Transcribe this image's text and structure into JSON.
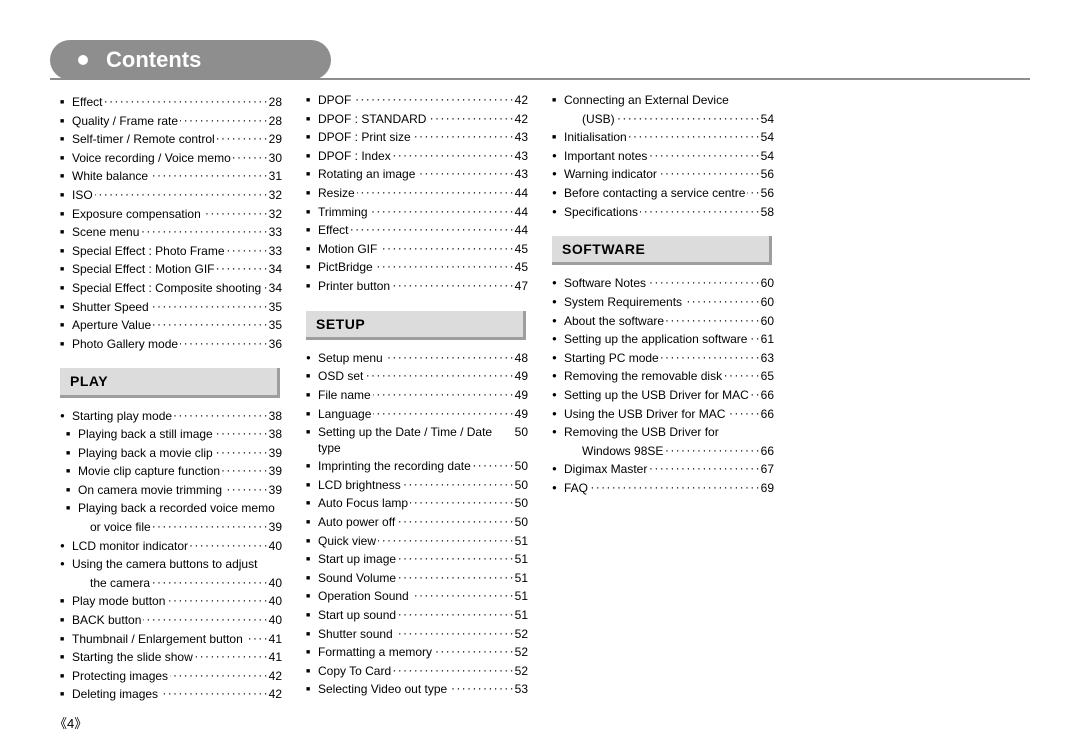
{
  "title": "Contents",
  "page_number_label": "《4》",
  "colors": {
    "bg": "#ffffff",
    "text": "#000000",
    "title_bar": "#8e8e8e",
    "title_text": "#ffffff",
    "section_bg": "#dcdcdc",
    "section_shadow": "#9e9e9e",
    "underline": "#8e8e8e"
  },
  "entries": [
    {
      "type": "item",
      "bullet": "square",
      "label": "Effect",
      "page": "28"
    },
    {
      "type": "item",
      "bullet": "square",
      "label": "Quality / Frame rate",
      "page": "28"
    },
    {
      "type": "item",
      "bullet": "square",
      "label": "Self-timer / Remote control",
      "page": "29"
    },
    {
      "type": "item",
      "bullet": "square",
      "label": "Voice recording / Voice memo",
      "page": "30"
    },
    {
      "type": "item",
      "bullet": "square",
      "label": "White balance",
      "page": "31"
    },
    {
      "type": "item",
      "bullet": "square",
      "label": "ISO",
      "page": "32"
    },
    {
      "type": "item",
      "bullet": "square",
      "label": "Exposure compensation",
      "page": "32"
    },
    {
      "type": "item",
      "bullet": "square",
      "label": "Scene menu",
      "page": "33"
    },
    {
      "type": "item",
      "bullet": "square",
      "label": "Special Effect : Photo Frame",
      "page": "33"
    },
    {
      "type": "item",
      "bullet": "square",
      "label": "Special Effect : Motion GIF",
      "page": "34"
    },
    {
      "type": "item",
      "bullet": "square",
      "label": "Special Effect : Composite shooting",
      "page": "34"
    },
    {
      "type": "item",
      "bullet": "square",
      "label": "Shutter Speed",
      "page": "35"
    },
    {
      "type": "item",
      "bullet": "square",
      "label": "Aperture Value",
      "page": "35"
    },
    {
      "type": "item",
      "bullet": "square",
      "label": "Photo Gallery mode",
      "page": "36"
    },
    {
      "type": "section",
      "label": "PLAY"
    },
    {
      "type": "item",
      "bullet": "disc",
      "label": "Starting play mode",
      "page": "38"
    },
    {
      "type": "item",
      "bullet": "square",
      "label": "Playing back a still image",
      "page": "38",
      "sub": true
    },
    {
      "type": "item",
      "bullet": "square",
      "label": "Playing back a movie clip",
      "page": "39",
      "sub": true
    },
    {
      "type": "item",
      "bullet": "square",
      "label": "Movie clip capture function",
      "page": "39",
      "sub": true
    },
    {
      "type": "item",
      "bullet": "square",
      "label": "On camera movie trimming",
      "page": "39",
      "sub": true
    },
    {
      "type": "item",
      "bullet": "square",
      "label": "Playing back a recorded voice memo",
      "nopage": true,
      "sub": true
    },
    {
      "type": "cont",
      "label": "or voice file",
      "page": "39"
    },
    {
      "type": "item",
      "bullet": "disc",
      "label": "LCD monitor indicator",
      "page": "40"
    },
    {
      "type": "item",
      "bullet": "disc",
      "label": "Using the camera buttons to adjust",
      "nopage": true
    },
    {
      "type": "cont",
      "label": "the camera",
      "page": "40"
    },
    {
      "type": "item",
      "bullet": "square",
      "label": "Play mode button",
      "page": "40"
    },
    {
      "type": "item",
      "bullet": "square",
      "label": "BACK button",
      "page": "40"
    },
    {
      "type": "item",
      "bullet": "square",
      "label": "Thumbnail / Enlargement button",
      "page": "41"
    },
    {
      "type": "item",
      "bullet": "square",
      "label": "Starting the slide show",
      "page": "41"
    },
    {
      "type": "item",
      "bullet": "square",
      "label": "Protecting images",
      "page": "42"
    },
    {
      "type": "item",
      "bullet": "square",
      "label": "Deleting images",
      "page": "42"
    },
    {
      "type": "item",
      "bullet": "square",
      "label": "DPOF",
      "page": "42"
    },
    {
      "type": "item",
      "bullet": "square",
      "label": "DPOF : STANDARD",
      "page": "42"
    },
    {
      "type": "item",
      "bullet": "square",
      "label": "DPOF : Print size",
      "page": "43"
    },
    {
      "type": "item",
      "bullet": "square",
      "label": "DPOF : Index",
      "page": "43"
    },
    {
      "type": "item",
      "bullet": "square",
      "label": "Rotating an image",
      "page": "43"
    },
    {
      "type": "item",
      "bullet": "square",
      "label": "Resize",
      "page": "44"
    },
    {
      "type": "item",
      "bullet": "square",
      "label": "Trimming",
      "page": "44"
    },
    {
      "type": "item",
      "bullet": "square",
      "label": "Effect",
      "page": "44"
    },
    {
      "type": "item",
      "bullet": "square",
      "label": "Motion GIF",
      "page": "45"
    },
    {
      "type": "item",
      "bullet": "square",
      "label": "PictBridge",
      "page": "45"
    },
    {
      "type": "item",
      "bullet": "square",
      "label": "Printer button",
      "page": "47"
    },
    {
      "type": "section",
      "label": "SETUP"
    },
    {
      "type": "item",
      "bullet": "disc",
      "label": "Setup menu",
      "page": "48"
    },
    {
      "type": "item",
      "bullet": "square",
      "label": "OSD set",
      "page": "49"
    },
    {
      "type": "item",
      "bullet": "square",
      "label": "File name",
      "page": "49"
    },
    {
      "type": "item",
      "bullet": "square",
      "label": "Language",
      "page": "49"
    },
    {
      "type": "item",
      "bullet": "square",
      "label": "Setting up the Date / Time / Date type",
      "page": "50"
    },
    {
      "type": "item",
      "bullet": "square",
      "label": "Imprinting the recording date",
      "page": "50"
    },
    {
      "type": "item",
      "bullet": "square",
      "label": "LCD brightness",
      "page": "50"
    },
    {
      "type": "item",
      "bullet": "square",
      "label": "Auto Focus lamp",
      "page": "50"
    },
    {
      "type": "item",
      "bullet": "square",
      "label": "Auto power off",
      "page": "50"
    },
    {
      "type": "item",
      "bullet": "square",
      "label": "Quick view",
      "page": "51"
    },
    {
      "type": "item",
      "bullet": "square",
      "label": "Start up image",
      "page": "51"
    },
    {
      "type": "item",
      "bullet": "square",
      "label": "Sound Volume",
      "page": "51"
    },
    {
      "type": "item",
      "bullet": "square",
      "label": "Operation Sound",
      "page": "51"
    },
    {
      "type": "item",
      "bullet": "square",
      "label": "Start up sound",
      "page": "51"
    },
    {
      "type": "item",
      "bullet": "square",
      "label": "Shutter sound",
      "page": "52"
    },
    {
      "type": "item",
      "bullet": "square",
      "label": "Formatting a memory",
      "page": "52"
    },
    {
      "type": "item",
      "bullet": "square",
      "label": "Copy To Card",
      "page": "52"
    },
    {
      "type": "item",
      "bullet": "square",
      "label": "Selecting Video out type",
      "page": "53"
    },
    {
      "type": "item",
      "bullet": "square",
      "label": "Connecting an External Device",
      "nopage": true
    },
    {
      "type": "cont",
      "label": "(USB)",
      "page": "54"
    },
    {
      "type": "item",
      "bullet": "square",
      "label": "Initialisation",
      "page": "54"
    },
    {
      "type": "item",
      "bullet": "disc",
      "label": "Important notes",
      "page": "54"
    },
    {
      "type": "item",
      "bullet": "disc",
      "label": "Warning indicator",
      "page": "56"
    },
    {
      "type": "item",
      "bullet": "disc",
      "label": "Before contacting a service centre",
      "page": "56"
    },
    {
      "type": "item",
      "bullet": "disc",
      "label": "Specifications",
      "page": "58"
    },
    {
      "type": "section",
      "label": "SOFTWARE"
    },
    {
      "type": "item",
      "bullet": "disc",
      "label": "Software Notes",
      "page": "60"
    },
    {
      "type": "item",
      "bullet": "disc",
      "label": "System Requirements",
      "page": "60"
    },
    {
      "type": "item",
      "bullet": "disc",
      "label": "About the software",
      "page": "60"
    },
    {
      "type": "item",
      "bullet": "disc",
      "label": "Setting up the application software",
      "page": "61"
    },
    {
      "type": "item",
      "bullet": "disc",
      "label": "Starting PC mode",
      "page": "63"
    },
    {
      "type": "item",
      "bullet": "disc",
      "label": "Removing the removable disk",
      "page": "65"
    },
    {
      "type": "item",
      "bullet": "disc",
      "label": "Setting up the USB Driver for MAC",
      "page": "66"
    },
    {
      "type": "item",
      "bullet": "disc",
      "label": "Using the USB Driver for MAC",
      "page": "66"
    },
    {
      "type": "item",
      "bullet": "disc",
      "label": "Removing the USB Driver for",
      "nopage": true
    },
    {
      "type": "cont",
      "label": "Windows 98SE",
      "page": "66"
    },
    {
      "type": "item",
      "bullet": "disc",
      "label": "Digimax Master",
      "page": "67"
    },
    {
      "type": "item",
      "bullet": "disc",
      "label": "FAQ",
      "page": "69"
    }
  ]
}
